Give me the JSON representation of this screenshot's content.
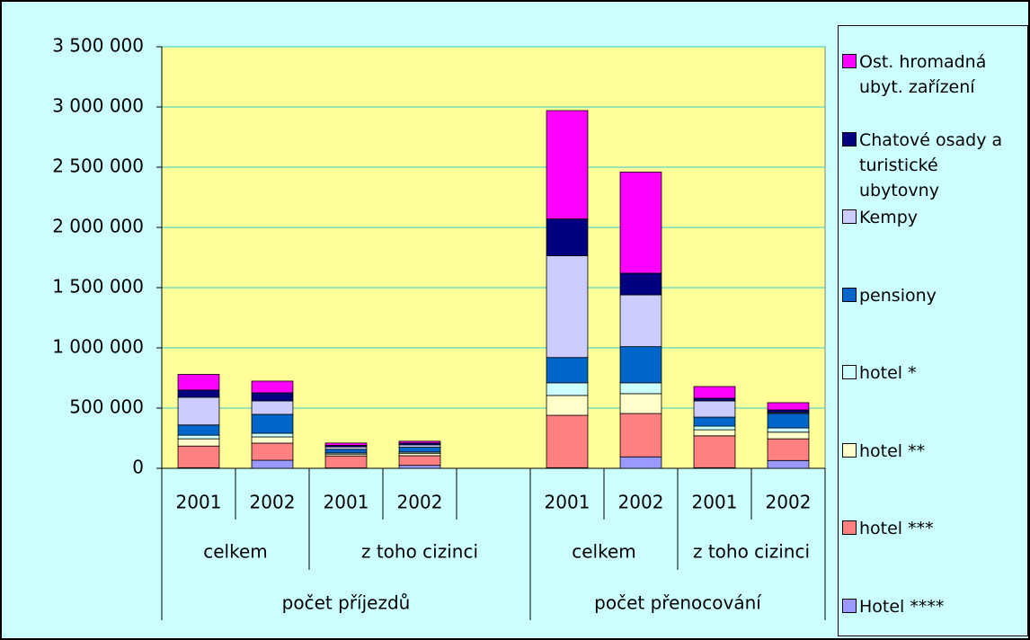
{
  "chart_data": {
    "type": "stacked_bar",
    "categories": [
      "2001",
      "2002",
      "2001",
      "2002",
      null,
      "2001",
      "2002",
      "2001",
      "2002"
    ],
    "groups": [
      {
        "label": "celkem",
        "span": 2
      },
      {
        "label": "z toho cizinci",
        "span": 3
      },
      {
        "label": "celkem",
        "span": 2
      },
      {
        "label": "z toho cizinci",
        "span": 2
      }
    ],
    "supergroups": [
      {
        "label": "počet příjezdů",
        "span": 5
      },
      {
        "label": "počet přenocování",
        "span": 4
      }
    ],
    "series": [
      {
        "name": "Hotel ****",
        "color": "#9999ff",
        "values": [
          5000,
          67000,
          3000,
          25000,
          null,
          5000,
          95000,
          5000,
          65000
        ]
      },
      {
        "name": "hotel ***",
        "color": "#ff8080",
        "values": [
          180000,
          142000,
          100000,
          80000,
          null,
          435000,
          360000,
          265000,
          180000
        ]
      },
      {
        "name": "hotel **",
        "color": "#ffffcc",
        "values": [
          60000,
          52000,
          15000,
          20000,
          null,
          165000,
          165000,
          50000,
          55000
        ]
      },
      {
        "name": "hotel *",
        "color": "#ccffff",
        "values": [
          30000,
          30000,
          10000,
          10000,
          null,
          105000,
          90000,
          30000,
          35000
        ]
      },
      {
        "name": "pensiony",
        "color": "#0066cc",
        "values": [
          85000,
          157000,
          30000,
          40000,
          null,
          210000,
          300000,
          75000,
          120000
        ]
      },
      {
        "name": "Kempy",
        "color": "#ccccff",
        "values": [
          230000,
          112000,
          20000,
          20000,
          null,
          845000,
          430000,
          135000,
          8000
        ]
      },
      {
        "name": "Chatové osady a turistické ubytovny",
        "color": "#000080",
        "values": [
          60000,
          67000,
          12000,
          15000,
          null,
          305000,
          180000,
          22000,
          22000
        ]
      },
      {
        "name": "Ost. hromadná ubyt. zařízení",
        "color": "#ff00ff",
        "values": [
          130000,
          97000,
          20000,
          15000,
          null,
          900000,
          840000,
          97000,
          60000
        ]
      }
    ],
    "ylim": [
      0,
      3500000
    ],
    "yticks": [
      {
        "value": 0,
        "label": "0"
      },
      {
        "value": 500000,
        "label": "500 000"
      },
      {
        "value": 1000000,
        "label": "1 000 000"
      },
      {
        "value": 1500000,
        "label": "1 500 000"
      },
      {
        "value": 2000000,
        "label": "2 000 000"
      },
      {
        "value": 2500000,
        "label": "2 500 000"
      },
      {
        "value": 3000000,
        "label": "3 000 000"
      },
      {
        "value": 3500000,
        "label": "3 500 000"
      }
    ],
    "grid": true,
    "legend": "right"
  }
}
